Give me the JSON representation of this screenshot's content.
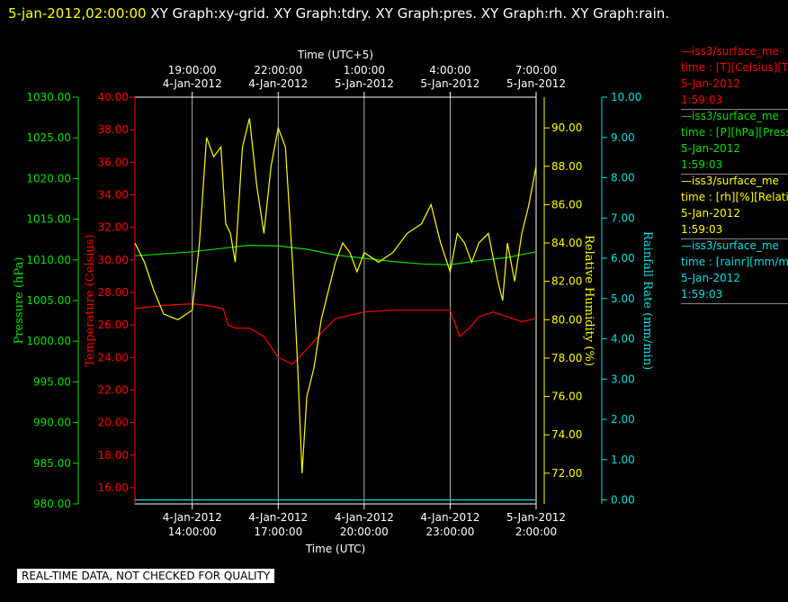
{
  "header": {
    "date": "5-jan-2012,02:00:00",
    "title": "XY Graph:xy-grid.  XY Graph:tdry.  XY Graph:pres.  XY Graph:rh.  XY Graph:rain."
  },
  "disclaimer": "REAL-TIME DATA, NOT CHECKED FOR QUALITY",
  "legend": [
    {
      "line1": "—iss3/surface_me",
      "line2": "time : [T][Celsius][T",
      "line3": "5-Jan-2012",
      "line4": "1:59:03",
      "color": "#ff0000"
    },
    {
      "line1": "—iss3/surface_me",
      "line2": "time : [P][hPa][Press",
      "line3": "5-Jan-2012",
      "line4": "1:59:03",
      "color": "#00e000"
    },
    {
      "line1": "—iss3/surface_me",
      "line2": "time : [rh][%][Relati",
      "line3": "5-Jan-2012",
      "line4": "1:59:03",
      "color": "#ffff00"
    },
    {
      "line1": "—iss3/surface_me",
      "line2": "time : [rainr][mm/mi",
      "line3": "5-Jan-2012",
      "line4": "1:59:03",
      "color": "#00e0e0"
    }
  ],
  "chart_data": {
    "type": "line",
    "x_bottom": {
      "label": "Time (UTC)",
      "range": [
        "4-Jan-2012 12:00",
        "5-Jan-2012 02:00"
      ],
      "ticks": [
        {
          "t": "4-Jan-2012 14:00",
          "line1": "4-Jan-2012",
          "line2": "14:00:00"
        },
        {
          "t": "4-Jan-2012 17:00",
          "line1": "4-Jan-2012",
          "line2": "17:00:00"
        },
        {
          "t": "4-Jan-2012 20:00",
          "line1": "4-Jan-2012",
          "line2": "20:00:00"
        },
        {
          "t": "4-Jan-2012 23:00",
          "line1": "4-Jan-2012",
          "line2": "23:00:00"
        },
        {
          "t": "5-Jan-2012 02:00",
          "line1": "5-Jan-2012",
          "line2": "2:00:00"
        }
      ]
    },
    "x_top": {
      "label": "Time (UTC+5)",
      "ticks": [
        {
          "t": "4-Jan-2012 14:00",
          "line1": "19:00:00",
          "line2": "4-Jan-2012"
        },
        {
          "t": "4-Jan-2012 17:00",
          "line1": "22:00:00",
          "line2": "4-Jan-2012"
        },
        {
          "t": "4-Jan-2012 20:00",
          "line1": "1:00:00",
          "line2": "5-Jan-2012"
        },
        {
          "t": "4-Jan-2012 23:00",
          "line1": "4:00:00",
          "line2": "5-Jan-2012"
        },
        {
          "t": "5-Jan-2012 02:00",
          "line1": "7:00:00",
          "line2": "5-Jan-2012"
        }
      ]
    },
    "axes": {
      "pressure": {
        "label": "Pressure (hPa)",
        "ylim": [
          980,
          1030
        ],
        "ticks": [
          "980.00",
          "985.00",
          "990.00",
          "995.00",
          "1000.00",
          "1005.00",
          "1010.00",
          "1015.00",
          "1020.00",
          "1025.00",
          "1030.00"
        ],
        "color": "#00e000"
      },
      "temperature": {
        "label": "Temperature (Celsius)",
        "ylim": [
          15,
          40
        ],
        "ticks": [
          "16.00",
          "18.00",
          "20.00",
          "22.00",
          "24.00",
          "26.00",
          "28.00",
          "30.00",
          "32.00",
          "34.00",
          "36.00",
          "38.00",
          "40.00"
        ],
        "color": "#ff0000"
      },
      "rh": {
        "label": "Relative Humidity (%)",
        "ylim": [
          70.4,
          91.6
        ],
        "ticks": [
          "72.00",
          "74.00",
          "76.00",
          "78.00",
          "80.00",
          "82.00",
          "84.00",
          "86.00",
          "88.00",
          "90.00"
        ],
        "color": "#ffff00"
      },
      "rain": {
        "label": "Rainfall Rate (mm/min)",
        "ylim": [
          -0.1,
          10.0
        ],
        "ticks": [
          "0.00",
          "1.00",
          "2.00",
          "3.00",
          "4.00",
          "5.00",
          "6.00",
          "7.00",
          "8.00",
          "9.00",
          "10.00"
        ],
        "color": "#00e0e0"
      }
    },
    "series": [
      {
        "name": "T",
        "axis": "temperature",
        "color": "#ff0000",
        "x": [
          "4-Jan-2012 12:00",
          "4-Jan-2012 13:00",
          "4-Jan-2012 14:00",
          "4-Jan-2012 14:30",
          "4-Jan-2012 15:05",
          "4-Jan-2012 15:15",
          "4-Jan-2012 15:30",
          "4-Jan-2012 16:00",
          "4-Jan-2012 16:30",
          "4-Jan-2012 17:00",
          "4-Jan-2012 17:30",
          "4-Jan-2012 18:00",
          "4-Jan-2012 18:30",
          "4-Jan-2012 19:00",
          "4-Jan-2012 20:00",
          "4-Jan-2012 21:00",
          "4-Jan-2012 22:00",
          "4-Jan-2012 23:00",
          "4-Jan-2012 23:20",
          "4-Jan-2012 23:40",
          "5-Jan-2012 00:00",
          "5-Jan-2012 00:30",
          "5-Jan-2012 01:00",
          "5-Jan-2012 01:30",
          "5-Jan-2012 02:00"
        ],
        "y": [
          27.0,
          27.2,
          27.3,
          27.2,
          27.0,
          26.0,
          25.8,
          25.8,
          25.3,
          24.0,
          23.6,
          24.5,
          25.5,
          26.4,
          26.8,
          26.9,
          26.9,
          26.9,
          25.3,
          25.8,
          26.5,
          26.8,
          26.5,
          26.2,
          26.4
        ]
      },
      {
        "name": "P",
        "axis": "pressure",
        "color": "#00e000",
        "x": [
          "4-Jan-2012 12:00",
          "4-Jan-2012 14:00",
          "4-Jan-2012 16:00",
          "4-Jan-2012 17:00",
          "4-Jan-2012 18:00",
          "4-Jan-2012 19:00",
          "4-Jan-2012 20:00",
          "4-Jan-2012 21:00",
          "4-Jan-2012 22:00",
          "4-Jan-2012 23:00",
          "5-Jan-2012 00:00",
          "5-Jan-2012 01:00",
          "5-Jan-2012 02:00"
        ],
        "y": [
          1010.5,
          1011.0,
          1011.8,
          1011.7,
          1011.3,
          1010.6,
          1010.2,
          1009.8,
          1009.5,
          1009.4,
          1009.9,
          1010.3,
          1011.0
        ]
      },
      {
        "name": "rh",
        "axis": "rh",
        "color": "#ffff00",
        "x": [
          "4-Jan-2012 12:00",
          "4-Jan-2012 12:20",
          "4-Jan-2012 12:40",
          "4-Jan-2012 13:00",
          "4-Jan-2012 13:30",
          "4-Jan-2012 14:00",
          "4-Jan-2012 14:15",
          "4-Jan-2012 14:30",
          "4-Jan-2012 14:45",
          "4-Jan-2012 15:00",
          "4-Jan-2012 15:10",
          "4-Jan-2012 15:20",
          "4-Jan-2012 15:30",
          "4-Jan-2012 15:45",
          "4-Jan-2012 16:00",
          "4-Jan-2012 16:15",
          "4-Jan-2012 16:30",
          "4-Jan-2012 16:45",
          "4-Jan-2012 17:00",
          "4-Jan-2012 17:15",
          "4-Jan-2012 17:30",
          "4-Jan-2012 17:40",
          "4-Jan-2012 17:50",
          "4-Jan-2012 18:00",
          "4-Jan-2012 18:15",
          "4-Jan-2012 18:30",
          "4-Jan-2012 18:45",
          "4-Jan-2012 19:00",
          "4-Jan-2012 19:15",
          "4-Jan-2012 19:30",
          "4-Jan-2012 19:45",
          "4-Jan-2012 20:00",
          "4-Jan-2012 20:30",
          "4-Jan-2012 21:00",
          "4-Jan-2012 21:30",
          "4-Jan-2012 22:00",
          "4-Jan-2012 22:20",
          "4-Jan-2012 22:40",
          "4-Jan-2012 23:00",
          "4-Jan-2012 23:15",
          "4-Jan-2012 23:30",
          "4-Jan-2012 23:45",
          "5-Jan-2012 00:00",
          "5-Jan-2012 00:20",
          "5-Jan-2012 00:40",
          "5-Jan-2012 00:50",
          "5-Jan-2012 01:00",
          "5-Jan-2012 01:15",
          "5-Jan-2012 01:30",
          "5-Jan-2012 01:45",
          "5-Jan-2012 02:00"
        ],
        "y": [
          84.0,
          83.0,
          81.5,
          80.3,
          80.0,
          80.5,
          84.0,
          89.5,
          88.5,
          89.0,
          85.0,
          84.5,
          83.0,
          89.0,
          90.5,
          87.0,
          84.5,
          88.0,
          90.0,
          89.0,
          83.0,
          78.0,
          72.0,
          76.0,
          77.5,
          80.0,
          81.5,
          83.0,
          84.0,
          83.5,
          82.5,
          83.5,
          83.0,
          83.5,
          84.5,
          85.0,
          86.0,
          84.0,
          82.5,
          84.5,
          84.0,
          83.0,
          84.0,
          84.5,
          82.0,
          81.0,
          84.0,
          82.0,
          84.5,
          86.0,
          88.0
        ]
      },
      {
        "name": "rainr",
        "axis": "rain",
        "color": "#00e0e0",
        "x": [
          "4-Jan-2012 12:00",
          "5-Jan-2012 02:00"
        ],
        "y": [
          0.0,
          0.0
        ]
      }
    ],
    "grid": true
  }
}
